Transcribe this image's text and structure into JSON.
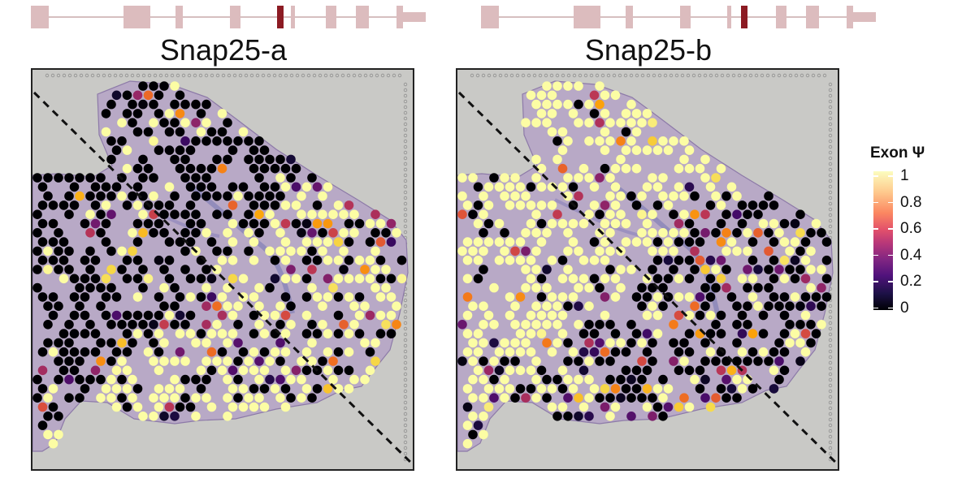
{
  "panels": [
    {
      "title": "Snap25-a",
      "highlight_exon": 5
    },
    {
      "title": "Snap25-b",
      "highlight_exon": 6
    }
  ],
  "legend": {
    "title": "Exon Ψ",
    "ticks": [
      "1",
      "0.8",
      "0.6",
      "0.4",
      "0.2",
      "0"
    ],
    "colormap": "inferno"
  },
  "colors": {
    "exon": "#dcbcbe",
    "exon_highlight": "#8c1b23",
    "intron_line": "#c8aaab",
    "tissue": "#b8a9c6",
    "background": "#c9c9c6",
    "psi_high": "#fcfdbf",
    "psi_low": "#000004"
  }
}
